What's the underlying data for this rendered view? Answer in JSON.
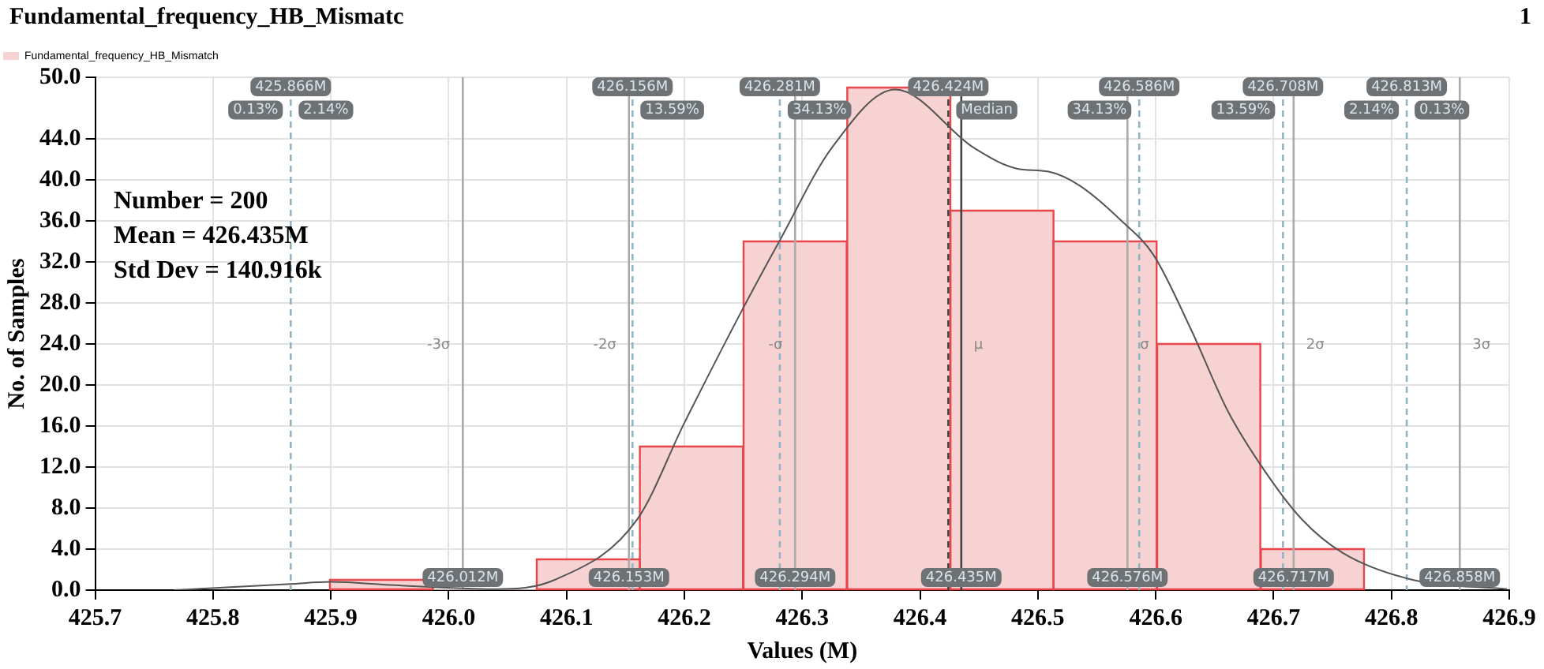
{
  "chart_data": {
    "type": "histogram",
    "title": "Fundamental_frequency_HB_Mismatc",
    "xlabel": "Values (M)",
    "ylabel": "No. of Samples",
    "bins": [
      425.899,
      425.987,
      426.075,
      426.162,
      426.25,
      426.338,
      426.426,
      426.513,
      426.601,
      426.689,
      426.777
    ],
    "series": [
      {
        "name": "Fundamental_frequency_HB_Mismatch",
        "color": "#f6d2d3",
        "values": [
          1,
          0,
          3,
          14,
          34,
          49,
          37,
          34,
          24,
          4
        ]
      },
      {
        "type": "line",
        "color": "#555555",
        "x": [
          425.767,
          425.866,
          425.9,
          425.95,
          426.04,
          426.09,
          426.16,
          426.2,
          426.249,
          426.281,
          426.325,
          426.379,
          426.446,
          426.482,
          426.509,
          426.536,
          426.571,
          426.598,
          426.63,
          426.661,
          426.692,
          426.724,
          426.759,
          426.818,
          426.898
        ],
        "values": [
          0,
          0.6,
          0.8,
          0.5,
          0.1,
          1.0,
          6.9,
          16.3,
          27.3,
          34.1,
          43.1,
          48.8,
          43.1,
          41.1,
          40.8,
          39.4,
          36.0,
          32.7,
          25.4,
          17.5,
          11.7,
          6.9,
          3.6,
          1.0,
          0.1
        ]
      }
    ],
    "xlim": [
      425.7,
      426.9
    ],
    "xticks": [
      425.7,
      425.8,
      425.9,
      {
        "value": 426,
        "label": "426.0"
      },
      426.1,
      426.2,
      426.3,
      426.4,
      426.5,
      426.6,
      426.7,
      426.8,
      426.9
    ],
    "ylim": [
      0,
      50
    ],
    "yticks": [
      {
        "value": 0,
        "label": "0.0"
      },
      {
        "value": 4,
        "label": "4.0"
      },
      {
        "value": 8,
        "label": "8.0"
      },
      {
        "value": 12,
        "label": "12.0"
      },
      {
        "value": 16,
        "label": "16.0"
      },
      {
        "value": 20,
        "label": "20.0"
      },
      {
        "value": 24,
        "label": "24.0"
      },
      {
        "value": 28,
        "label": "28.0"
      },
      {
        "value": 32,
        "label": "32.0"
      },
      {
        "value": 36,
        "label": "36.0"
      },
      {
        "value": 40,
        "label": "40.0"
      },
      {
        "value": 44,
        "label": "44.0"
      },
      {
        "value": 50,
        "label": "50.0"
      }
    ],
    "grid": true,
    "legend": "top left",
    "ref_lines": [
      {
        "axis": "x",
        "value": 425.866,
        "label": "425.866M",
        "color": "#8fb4c4",
        "line_style": "dashed"
      },
      {
        "axis": "x",
        "value": 426.156,
        "label": "426.156M",
        "color": "#8fb4c4",
        "line_style": "dashed"
      },
      {
        "axis": "x",
        "value": 426.281,
        "label": "426.281M",
        "color": "#8fb4c4",
        "line_style": "dashed"
      },
      {
        "axis": "x",
        "value": 426.424,
        "label": "426.424M",
        "color": "#444444",
        "line_style": "dashed"
      },
      {
        "axis": "x",
        "value": 426.586,
        "label": "426.586M",
        "color": "#8fb4c4",
        "line_style": "dashed"
      },
      {
        "axis": "x",
        "value": 426.708,
        "label": "426.708M",
        "color": "#8fb4c4",
        "line_style": "dashed"
      },
      {
        "axis": "x",
        "value": 426.813,
        "label": "426.813M",
        "color": "#8fb4c4",
        "line_style": "dashed"
      },
      {
        "axis": "x",
        "value": 426.012,
        "label": "426.012M",
        "color": "#aaaaaa",
        "line_style": "solid"
      },
      {
        "axis": "x",
        "value": 426.153,
        "label": "426.153M",
        "color": "#aaaaaa",
        "line_style": "solid"
      },
      {
        "axis": "x",
        "value": 426.294,
        "label": "426.294M",
        "color": "#aaaaaa",
        "line_style": "solid"
      },
      {
        "axis": "x",
        "value": 426.435,
        "label": "426.435M",
        "color": "#444444",
        "line_style": "solid"
      },
      {
        "axis": "x",
        "value": 426.576,
        "label": "426.576M",
        "color": "#aaaaaa",
        "line_style": "solid"
      },
      {
        "axis": "x",
        "value": 426.717,
        "label": "426.717M",
        "color": "#aaaaaa",
        "line_style": "solid"
      },
      {
        "axis": "x",
        "value": 426.858,
        "label": "426.858M",
        "color": "#aaaaaa",
        "line_style": "solid"
      }
    ],
    "annotations": [
      "1",
      "Number = 200",
      "Mean = 426.435M",
      "Std Dev = 140.916k",
      {
        "text": "0.13%",
        "x": 425.866,
        "y": 46.8
      },
      {
        "text": "2.14%",
        "x": 425.866,
        "y": 46.8
      },
      {
        "text": "13.59%",
        "x": 426.156,
        "y": 46.8
      },
      {
        "text": "34.13%",
        "x": 426.281,
        "y": 46.8
      },
      {
        "text": "Median",
        "x": 426.424,
        "y": 46.8
      },
      {
        "text": "34.13%",
        "x": 426.586,
        "y": 46.8
      },
      {
        "text": "13.59%",
        "x": 426.708,
        "y": 46.8
      },
      {
        "text": "2.14%",
        "x": 426.813,
        "y": 46.8
      },
      {
        "text": "0.13%",
        "x": 426.813,
        "y": 46.8
      },
      {
        "text": "-3σ",
        "x": 426.012,
        "y": 23.9
      },
      {
        "text": "-2σ",
        "x": 426.153,
        "y": 23.9
      },
      {
        "text": "-σ",
        "x": 426.294,
        "y": 23.9
      },
      {
        "text": "μ",
        "x": 426.435,
        "y": 23.9
      },
      {
        "text": "σ",
        "x": 426.576,
        "y": 23.9
      },
      {
        "text": "2σ",
        "x": 426.717,
        "y": 23.9
      },
      {
        "text": "3σ",
        "x": 426.858,
        "y": 23.9
      }
    ]
  }
}
